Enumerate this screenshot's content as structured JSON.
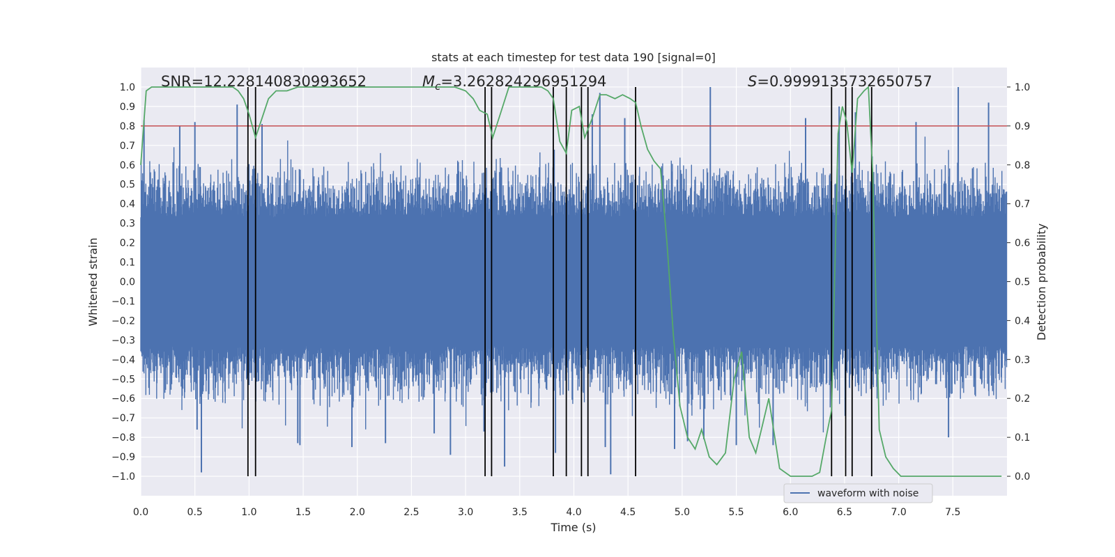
{
  "chart_data": {
    "type": "line",
    "title": "stats at each timestep for test data 190 [signal=0]",
    "xlabel": "Time (s)",
    "ylabel_left": "Whitened strain",
    "ylabel_right": "Detection probability",
    "xlim": [
      0.0,
      8.0
    ],
    "ylim_left": [
      -1.1,
      1.1
    ],
    "ylim_right": [
      -0.05,
      1.05
    ],
    "grid": true,
    "background": "#eaeaf2",
    "x_ticks": [
      "0.0",
      "0.5",
      "1.0",
      "1.5",
      "2.0",
      "2.5",
      "3.0",
      "3.5",
      "4.0",
      "4.5",
      "5.0",
      "5.5",
      "6.0",
      "6.5",
      "7.0",
      "7.5"
    ],
    "y_ticks_left": [
      "1.0",
      "0.9",
      "0.8",
      "0.7",
      "0.6",
      "0.5",
      "0.4",
      "0.3",
      "0.2",
      "0.1",
      "0.0",
      "−0.1",
      "−0.2",
      "−0.3",
      "−0.4",
      "−0.5",
      "−0.6",
      "−0.7",
      "−0.8",
      "−0.9",
      "−1.0"
    ],
    "y_ticks_right": [
      "1.0",
      "0.9",
      "0.8",
      "0.7",
      "0.6",
      "0.5",
      "0.4",
      "0.3",
      "0.2",
      "0.1",
      "0.0"
    ],
    "annotations": {
      "snr": "SNR=12.228140830993652",
      "mc_symbol": "M",
      "mc_sub": "c",
      "mc_value": "=3.262824296951294",
      "s_symbol": "S",
      "s_value": "=0.9999135732650757"
    },
    "legend": {
      "label": "waveform with noise",
      "placement": "lower-right"
    },
    "threshold": {
      "value": 0.9,
      "axis": "right",
      "color": "#c44e52"
    },
    "detection_markers_s": [
      0.99,
      1.06,
      3.18,
      3.24,
      3.81,
      3.93,
      4.07,
      4.13,
      4.57,
      6.38,
      6.51,
      6.57,
      6.75
    ],
    "waveform": {
      "name": "waveform with noise",
      "color": "#4c72b0",
      "duration_s": 8.0,
      "core_amplitude": 0.33,
      "outlier_peaks": [
        {
          "x": 0.03,
          "y": 0.83
        },
        {
          "x": 0.36,
          "y": 0.8
        },
        {
          "x": 0.5,
          "y": 0.82
        },
        {
          "x": 0.52,
          "y": -0.76
        },
        {
          "x": 0.56,
          "y": -0.98
        },
        {
          "x": 0.89,
          "y": 0.91
        },
        {
          "x": 1.12,
          "y": 0.81
        },
        {
          "x": 1.45,
          "y": -0.83
        },
        {
          "x": 1.47,
          "y": -0.84
        },
        {
          "x": 1.95,
          "y": -0.85
        },
        {
          "x": 2.26,
          "y": -0.83
        },
        {
          "x": 2.71,
          "y": -0.78
        },
        {
          "x": 2.86,
          "y": -0.89
        },
        {
          "x": 3.17,
          "y": -0.77
        },
        {
          "x": 3.36,
          "y": -0.95
        },
        {
          "x": 3.83,
          "y": -0.88
        },
        {
          "x": 4.17,
          "y": 0.86
        },
        {
          "x": 4.24,
          "y": 0.97
        },
        {
          "x": 4.29,
          "y": -0.85
        },
        {
          "x": 4.34,
          "y": -0.99
        },
        {
          "x": 4.47,
          "y": 0.84
        },
        {
          "x": 4.93,
          "y": -0.86
        },
        {
          "x": 5.05,
          "y": -0.82
        },
        {
          "x": 5.2,
          "y": -0.81
        },
        {
          "x": 5.26,
          "y": 1.0
        },
        {
          "x": 5.5,
          "y": -0.84
        },
        {
          "x": 5.84,
          "y": -0.84
        },
        {
          "x": 6.14,
          "y": 0.84
        },
        {
          "x": 6.45,
          "y": 0.9
        },
        {
          "x": 6.6,
          "y": 0.87
        },
        {
          "x": 7.16,
          "y": 0.82
        },
        {
          "x": 7.46,
          "y": -0.8
        },
        {
          "x": 7.55,
          "y": 1.0
        },
        {
          "x": 7.83,
          "y": 0.92
        }
      ]
    },
    "probability_series": {
      "name": "Detection probability",
      "color": "#55a868",
      "x": [
        0.0,
        0.05,
        0.1,
        0.2,
        0.3,
        0.4,
        0.5,
        0.6,
        0.7,
        0.8,
        0.85,
        0.9,
        0.95,
        1.0,
        1.06,
        1.12,
        1.18,
        1.25,
        1.35,
        1.45,
        1.6,
        1.8,
        2.0,
        2.2,
        2.4,
        2.6,
        2.8,
        2.9,
        3.0,
        3.07,
        3.13,
        3.2,
        3.25,
        3.32,
        3.4,
        3.5,
        3.6,
        3.7,
        3.76,
        3.81,
        3.87,
        3.93,
        3.98,
        4.05,
        4.1,
        4.17,
        4.24,
        4.3,
        4.38,
        4.45,
        4.52,
        4.57,
        4.62,
        4.68,
        4.74,
        4.8,
        4.86,
        4.92,
        4.98,
        5.05,
        5.12,
        5.18,
        5.25,
        5.32,
        5.4,
        5.48,
        5.55,
        5.62,
        5.68,
        5.74,
        5.8,
        5.9,
        6.0,
        6.1,
        6.15,
        6.2,
        6.27,
        6.33,
        6.38,
        6.44,
        6.48,
        6.52,
        6.57,
        6.62,
        6.68,
        6.72,
        6.76,
        6.82,
        6.88,
        6.95,
        7.02,
        7.2,
        7.5,
        7.8,
        7.95
      ],
      "y": [
        0.8,
        0.99,
        1.0,
        1.0,
        1.0,
        1.0,
        1.0,
        1.0,
        1.0,
        1.0,
        1.0,
        0.99,
        0.97,
        0.93,
        0.87,
        0.92,
        0.97,
        0.99,
        0.99,
        1.0,
        1.0,
        1.0,
        1.0,
        1.0,
        1.0,
        1.0,
        1.0,
        1.0,
        0.99,
        0.97,
        0.94,
        0.93,
        0.87,
        0.93,
        1.0,
        1.0,
        1.0,
        1.0,
        0.99,
        0.97,
        0.86,
        0.83,
        0.94,
        0.95,
        0.87,
        0.92,
        0.98,
        0.98,
        0.97,
        0.98,
        0.97,
        0.96,
        0.9,
        0.84,
        0.81,
        0.79,
        0.6,
        0.36,
        0.18,
        0.1,
        0.07,
        0.12,
        0.05,
        0.03,
        0.06,
        0.25,
        0.32,
        0.1,
        0.06,
        0.13,
        0.2,
        0.02,
        0.0,
        0.0,
        0.0,
        0.0,
        0.01,
        0.1,
        0.17,
        0.88,
        0.95,
        0.91,
        0.78,
        0.97,
        0.99,
        1.0,
        0.78,
        0.12,
        0.05,
        0.02,
        0.0,
        0.0,
        0.0,
        0.0,
        0.0
      ]
    }
  }
}
